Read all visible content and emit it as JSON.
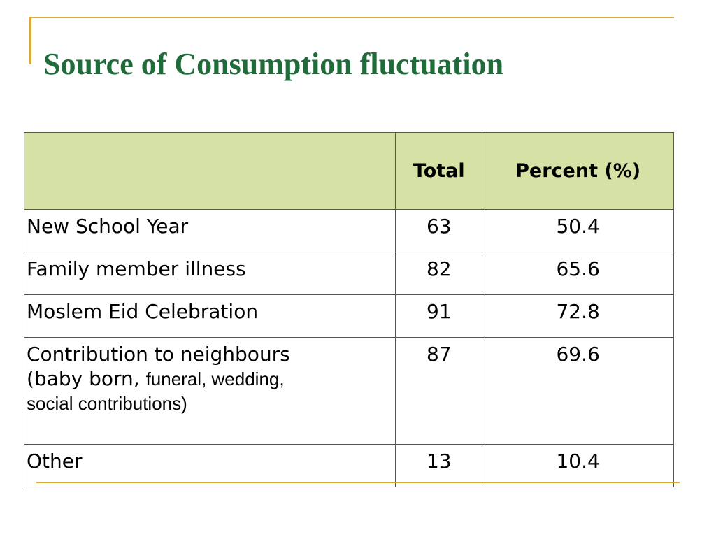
{
  "title": "Source of  Consumption fluctuation",
  "table": {
    "headers": [
      "",
      "Total",
      "Percent (%)"
    ],
    "rows": [
      {
        "label": "New School Year",
        "total": "63",
        "percent": "50.4"
      },
      {
        "label": "Family member illness",
        "total": "82",
        "percent": "65.6"
      },
      {
        "label": "Moslem Eid Celebration",
        "total": "91",
        "percent": "72.8"
      },
      {
        "label_line1": "Contribution to neighbours",
        "label_line2_start": "(baby born, ",
        "label_line2_rest": "funeral, wedding,",
        "label_line3": "social contributions)",
        "total": "87",
        "percent": "69.6"
      },
      {
        "label": "Other",
        "total": "13",
        "percent": "10.4"
      }
    ]
  },
  "colors": {
    "title": "#1f6b3a",
    "header_bg": "#d6e1a5",
    "accent": "#d9a93a"
  }
}
